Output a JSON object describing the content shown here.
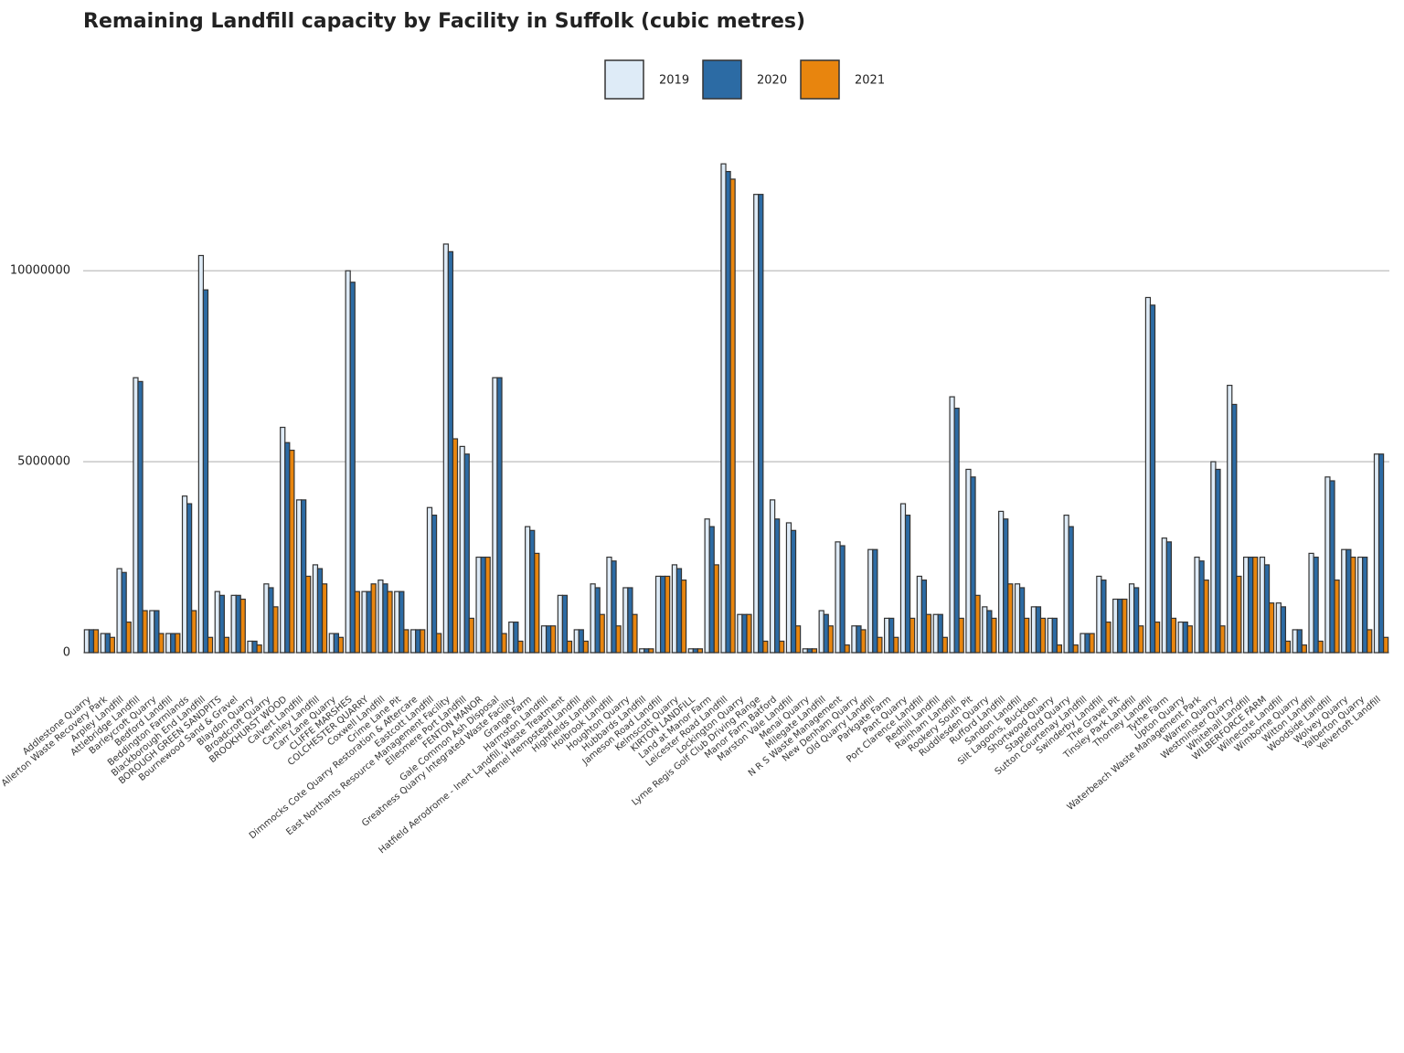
{
  "chart_data": {
    "type": "bar",
    "title": "Remaining Landfill capacity by Facility in Suffolk (cubic metres)",
    "categories": [
      "Addlestone Quarry",
      "Allerton Waste Recovery Park",
      "Arpley Landfill",
      "Attlebridge Landfill",
      "Barleycroft Quarry",
      "Bedford Landfill",
      "Beddington Farmlands",
      "Blackborough End Landfill",
      "BOROUGH GREEN SANDPITS",
      "Bournewood Sand & Gravel",
      "Blaydon Quarry",
      "Broadcroft Quarry",
      "BROOKHURST WOOD",
      "Calvert Landfill",
      "Cantley Landfill",
      "Carr Lane Quarry",
      "CLIFFE MARSHES",
      "COLCHESTER QUARRY",
      "Coxwell Landfill",
      "Crime Lane Pit",
      "Dimmocks Cote Quarry Restoration & Aftercare",
      "Eastcott Landfill",
      "East Northants Resource Management Facility",
      "Ellesmere Port Landfill",
      "FENTON MANOR",
      "Gale Common Ash Disposal",
      "Greatness Quarry Integrated Waste Facility",
      "Grange Farm",
      "Harmston Landfill",
      "Hatfield Aerodrome - Inert Landfill, Waste Treatment",
      "Hemel Hempstead Landfill",
      "Highfields Landfill",
      "Holbrook Landfill",
      "Houghton Quarry",
      "Hubbards Landfill",
      "Jameson Road Landfill",
      "Kelmscott Quarry",
      "KIRTON LANDFILL",
      "Land at Manor Farm",
      "Leicester Road Landfill",
      "Lockington Quarry",
      "Lyme Regis Golf Club Driving Range",
      "Manor Farm Batford",
      "Marston Vale Landfill",
      "Menai Quarry",
      "Milegate Landfill",
      "N R S Waste Management",
      "New Denham Quarry",
      "Old Quarry Landfill",
      "Parkgate Farm",
      "Pant Quarry",
      "Port Clarence Landfill",
      "Redhill Landfill",
      "Rainham Landfill",
      "Rookery South Pit",
      "Ruddlesden Quarry",
      "Rufford Landfill",
      "Sandon Landfill",
      "Silt Lagoons, Buckden",
      "Shortwood Quarry",
      "Stapleford Quarry",
      "Sutton Courtenay Landfill",
      "Swinderby Landfill",
      "The Gravel Pit",
      "Tinsley Park Landfill",
      "Thorney Landfill",
      "Tythe Farm",
      "Upton Quarry",
      "Waterbeach Waste Management Park",
      "Warren Quarry",
      "Westminster Quarry",
      "Whitehall Landfill",
      "WILBERFORCE FARM",
      "Wilnecote Landfill",
      "Wimborne Quarry",
      "Witton Landfill",
      "Woodside Landfill",
      "Wolvey Quarry",
      "Yalberton Quarry",
      "Yelvertoft Landfill"
    ],
    "series": [
      {
        "name": "2019",
        "color": "#deebf7",
        "values": [
          600000,
          500000,
          2200000,
          7200000,
          1100000,
          500000,
          4100000,
          10400000,
          1600000,
          1500000,
          300000,
          1800000,
          5900000,
          4000000,
          2300000,
          500000,
          10000000,
          1600000,
          1900000,
          1600000,
          600000,
          3800000,
          10700000,
          5400000,
          2500000,
          7200000,
          800000,
          3300000,
          700000,
          1500000,
          600000,
          1800000,
          2500000,
          1700000,
          100000,
          2000000,
          2300000,
          100000,
          3500000,
          12800000,
          1000000,
          12000000,
          4000000,
          3400000,
          100000,
          1100000,
          2900000,
          700000,
          2700000,
          900000,
          3900000,
          2000000,
          1000000,
          6700000,
          4800000,
          1200000,
          3700000,
          1800000,
          1200000,
          900000,
          3600000,
          500000,
          2000000,
          1400000,
          1800000,
          9300000,
          3000000,
          800000,
          2500000,
          5000000,
          7000000,
          2500000,
          2500000,
          1300000,
          600000,
          2600000,
          4600000,
          2700000,
          2500000,
          5200000
        ]
      },
      {
        "name": "2020",
        "color": "#2c6ba4",
        "values": [
          600000,
          500000,
          2100000,
          7100000,
          1100000,
          500000,
          3900000,
          9500000,
          1500000,
          1500000,
          300000,
          1700000,
          5500000,
          4000000,
          2200000,
          500000,
          9700000,
          1600000,
          1800000,
          1600000,
          600000,
          3600000,
          10500000,
          5200000,
          2500000,
          7200000,
          800000,
          3200000,
          700000,
          1500000,
          600000,
          1700000,
          2400000,
          1700000,
          100000,
          2000000,
          2200000,
          100000,
          3300000,
          12600000,
          1000000,
          12000000,
          3500000,
          3200000,
          100000,
          1000000,
          2800000,
          700000,
          2700000,
          900000,
          3600000,
          1900000,
          1000000,
          6400000,
          4600000,
          1100000,
          3500000,
          1700000,
          1200000,
          900000,
          3300000,
          500000,
          1900000,
          1400000,
          1700000,
          9100000,
          2900000,
          800000,
          2400000,
          4800000,
          6500000,
          2500000,
          2300000,
          1200000,
          600000,
          2500000,
          4500000,
          2700000,
          2500000,
          5200000
        ]
      },
      {
        "name": "2021",
        "color": "#e8850e",
        "values": [
          600000,
          400000,
          800000,
          1100000,
          500000,
          500000,
          1100000,
          400000,
          400000,
          1400000,
          200000,
          1200000,
          5300000,
          2000000,
          1800000,
          400000,
          1600000,
          1800000,
          1600000,
          600000,
          600000,
          500000,
          5600000,
          900000,
          2500000,
          500000,
          300000,
          2600000,
          700000,
          300000,
          300000,
          1000000,
          700000,
          1000000,
          100000,
          2000000,
          1900000,
          100000,
          2300000,
          12400000,
          1000000,
          300000,
          300000,
          700000,
          100000,
          700000,
          200000,
          600000,
          400000,
          400000,
          900000,
          1000000,
          400000,
          900000,
          1500000,
          900000,
          1800000,
          900000,
          900000,
          200000,
          200000,
          500000,
          800000,
          1400000,
          700000,
          800000,
          900000,
          700000,
          1900000,
          700000,
          2000000,
          2500000,
          1300000,
          300000,
          200000,
          300000,
          1900000,
          2500000,
          600000,
          400000
        ]
      }
    ],
    "ylim": [
      0,
      13500000
    ],
    "yticks": [
      0,
      5000000,
      10000000
    ],
    "grid": true,
    "legend": "top"
  }
}
